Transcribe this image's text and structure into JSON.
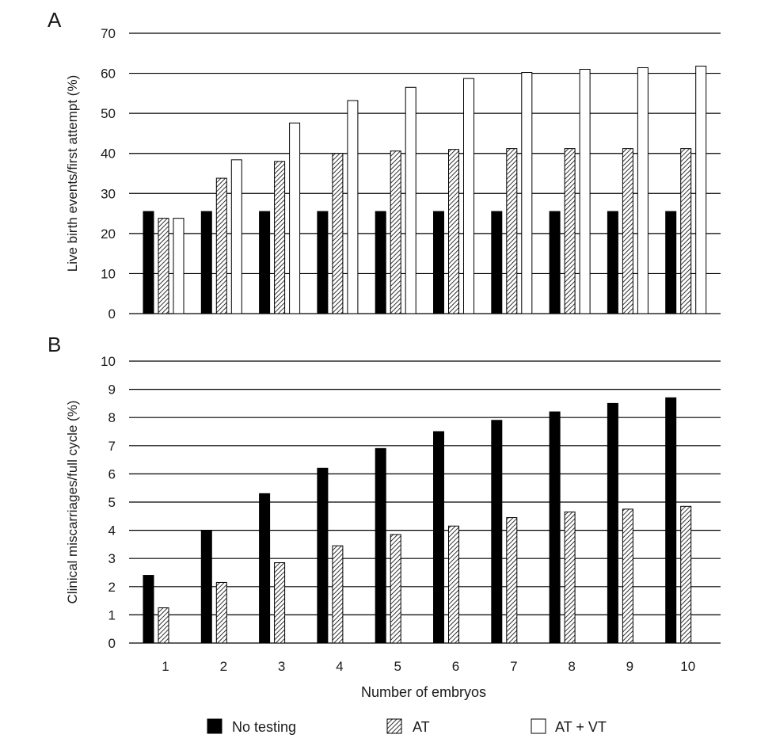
{
  "chart_data": [
    {
      "panel": "A",
      "type": "bar",
      "title": "",
      "ylabel": "Live birth events/first attempt (%)",
      "xlabel": "",
      "categories": [
        "1",
        "2",
        "3",
        "4",
        "5",
        "6",
        "7",
        "8",
        "9",
        "10"
      ],
      "ylim": [
        0,
        70
      ],
      "yticks": [
        0,
        10,
        20,
        30,
        40,
        50,
        60,
        70
      ],
      "grid": true,
      "series": [
        {
          "name": "No testing",
          "values": [
            25.5,
            25.5,
            25.5,
            25.5,
            25.5,
            25.5,
            25.5,
            25.5,
            25.5,
            25.5
          ]
        },
        {
          "name": "AT",
          "values": [
            23.8,
            33.8,
            38.0,
            40.0,
            40.6,
            41.0,
            41.2,
            41.2,
            41.2,
            41.2
          ]
        },
        {
          "name": "AT + VT",
          "values": [
            23.8,
            38.4,
            47.6,
            53.2,
            56.5,
            58.7,
            60.2,
            61.0,
            61.4,
            61.8
          ]
        }
      ]
    },
    {
      "panel": "B",
      "type": "bar",
      "title": "",
      "ylabel": "Clinical miscarriages/full cycle (%)",
      "xlabel": "Number of embryos",
      "categories": [
        "1",
        "2",
        "3",
        "4",
        "5",
        "6",
        "7",
        "8",
        "9",
        "10"
      ],
      "ylim": [
        0,
        10
      ],
      "yticks": [
        0,
        1,
        2,
        3,
        4,
        5,
        6,
        7,
        8,
        9,
        10
      ],
      "grid": true,
      "series": [
        {
          "name": "No testing",
          "values": [
            2.4,
            4.0,
            5.3,
            6.2,
            6.9,
            7.5,
            7.9,
            8.2,
            8.5,
            8.7
          ]
        },
        {
          "name": "AT",
          "values": [
            1.25,
            2.15,
            2.85,
            3.45,
            3.85,
            4.15,
            4.45,
            4.65,
            4.75,
            4.85
          ]
        }
      ]
    }
  ],
  "legend": {
    "position": "bottom",
    "items": [
      {
        "label": "No testing",
        "style": "solid"
      },
      {
        "label": "AT",
        "style": "hatched"
      },
      {
        "label": "AT + VT",
        "style": "empty"
      }
    ]
  },
  "colors": {
    "bar_solid": "#000000",
    "bar_outline": "#000000",
    "grid": "#000000",
    "text": "#1a1a1a"
  }
}
